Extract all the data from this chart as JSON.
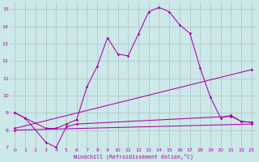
{
  "background_color": "#cce8e8",
  "grid_color": "#b0c8c8",
  "line_color": "#aa00aa",
  "xlim": [
    -0.5,
    23.5
  ],
  "ylim": [
    7,
    15.4
  ],
  "xticks": [
    0,
    1,
    2,
    3,
    4,
    5,
    6,
    7,
    8,
    9,
    10,
    11,
    12,
    13,
    14,
    15,
    16,
    17,
    18,
    19,
    20,
    21,
    22,
    23
  ],
  "yticks": [
    7,
    8,
    9,
    10,
    11,
    12,
    13,
    14,
    15
  ],
  "xlabel": "Windchill (Refroidissement éolien,°C)",
  "series": [
    {
      "x": [
        0,
        1,
        3,
        4,
        5,
        6,
        7,
        8,
        9,
        10,
        11,
        12,
        13,
        14,
        15,
        16,
        17,
        18,
        19,
        20,
        21,
        22,
        23
      ],
      "y": [
        9.0,
        8.7,
        8.1,
        8.1,
        8.35,
        8.6,
        10.5,
        11.7,
        13.35,
        12.4,
        12.3,
        13.55,
        14.85,
        15.1,
        14.85,
        14.1,
        13.6,
        11.6,
        9.9,
        8.7,
        8.85,
        8.5,
        8.45
      ]
    },
    {
      "x": [
        0,
        1,
        3,
        4,
        5,
        6,
        21,
        22,
        23
      ],
      "y": [
        9.0,
        8.7,
        7.3,
        7.0,
        8.2,
        8.35,
        8.8,
        8.5,
        8.45
      ]
    },
    {
      "x": [
        0,
        23
      ],
      "y": [
        8.1,
        11.5
      ]
    },
    {
      "x": [
        0,
        23
      ],
      "y": [
        8.0,
        8.35
      ]
    }
  ]
}
